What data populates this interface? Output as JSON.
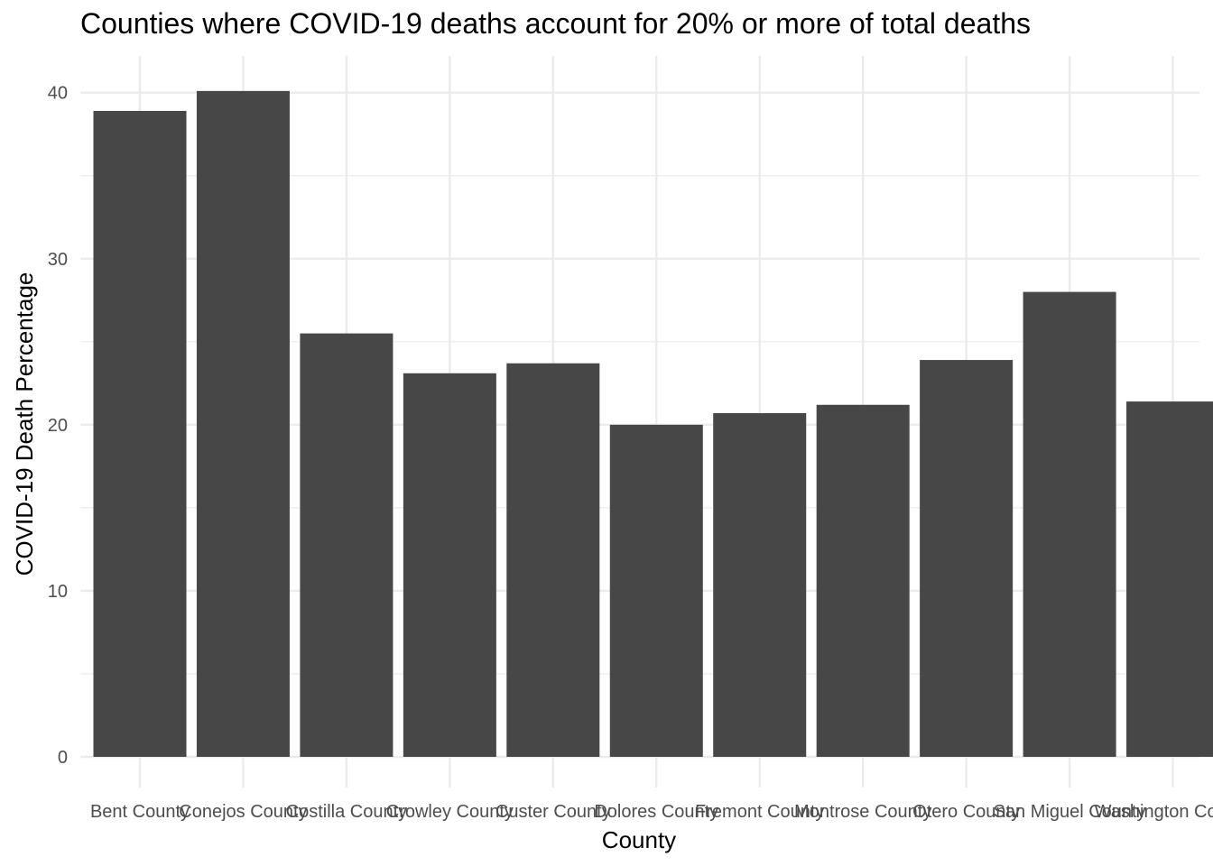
{
  "chart_data": {
    "type": "bar",
    "title": "Counties where COVID-19 deaths account for 20% or more of total deaths",
    "xlabel": "County",
    "ylabel": "COVID-19 Death Percentage",
    "categories": [
      "Bent County",
      "Conejos County",
      "Costilla County",
      "Crowley County",
      "Custer County",
      "Dolores County",
      "Fremont County",
      "Montrose County",
      "Otero County",
      "San Miguel County",
      "Washington County"
    ],
    "values": [
      38.9,
      40.1,
      25.5,
      23.1,
      23.7,
      20.0,
      20.7,
      21.2,
      23.9,
      28.0,
      21.4
    ],
    "ylim": [
      0,
      42
    ],
    "yticks": [
      0,
      10,
      20,
      30,
      40
    ],
    "ytick_labels": [
      "0",
      "10",
      "20",
      "30",
      "40"
    ],
    "grid": true,
    "bar_color": "#474747",
    "grid_color": "#ebebeb"
  }
}
